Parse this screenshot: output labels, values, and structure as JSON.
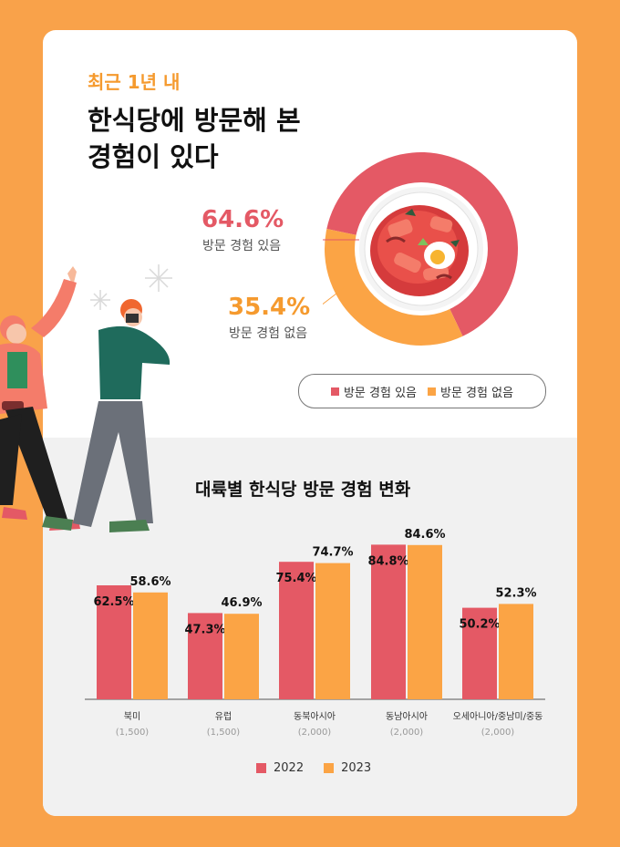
{
  "header": {
    "eyebrow": "최근 1년 내",
    "title": "한식당에 방문해 본\n경험이 있다"
  },
  "colors": {
    "red": "#e45965",
    "orange": "#fba445",
    "background": "#f9a24a"
  },
  "chart_data": [
    {
      "type": "pie",
      "slices": [
        {
          "name": "방문 경험 있음",
          "value": 64.6,
          "label": "64.6%",
          "color": "#e45965"
        },
        {
          "name": "방문 경험 없음",
          "value": 35.4,
          "label": "35.4%",
          "color": "#fba445"
        }
      ],
      "legend": [
        "방문 경험 있음",
        "방문 경험 없음"
      ]
    },
    {
      "type": "bar",
      "title": "대륙별 한식당 방문 경험 변화",
      "categories": [
        "북미",
        "유럽",
        "동북아시아",
        "동남아시아",
        "오세아니아/중남미/중동"
      ],
      "category_notes": [
        "(1,500)",
        "(1,500)",
        "(2,000)",
        "(2,000)",
        "(2,000)"
      ],
      "series": [
        {
          "name": "2022",
          "values": [
            62.5,
            47.3,
            75.4,
            84.8,
            50.2
          ],
          "labels": [
            "62.5%",
            "47.3%",
            "75.4%",
            "84.8%",
            "50.2%"
          ],
          "color": "#e45965"
        },
        {
          "name": "2023",
          "values": [
            58.6,
            46.9,
            74.7,
            84.6,
            52.3
          ],
          "labels": [
            "58.6%",
            "46.9%",
            "74.7%",
            "84.6%",
            "52.3%"
          ],
          "color": "#fba445"
        }
      ]
    }
  ]
}
